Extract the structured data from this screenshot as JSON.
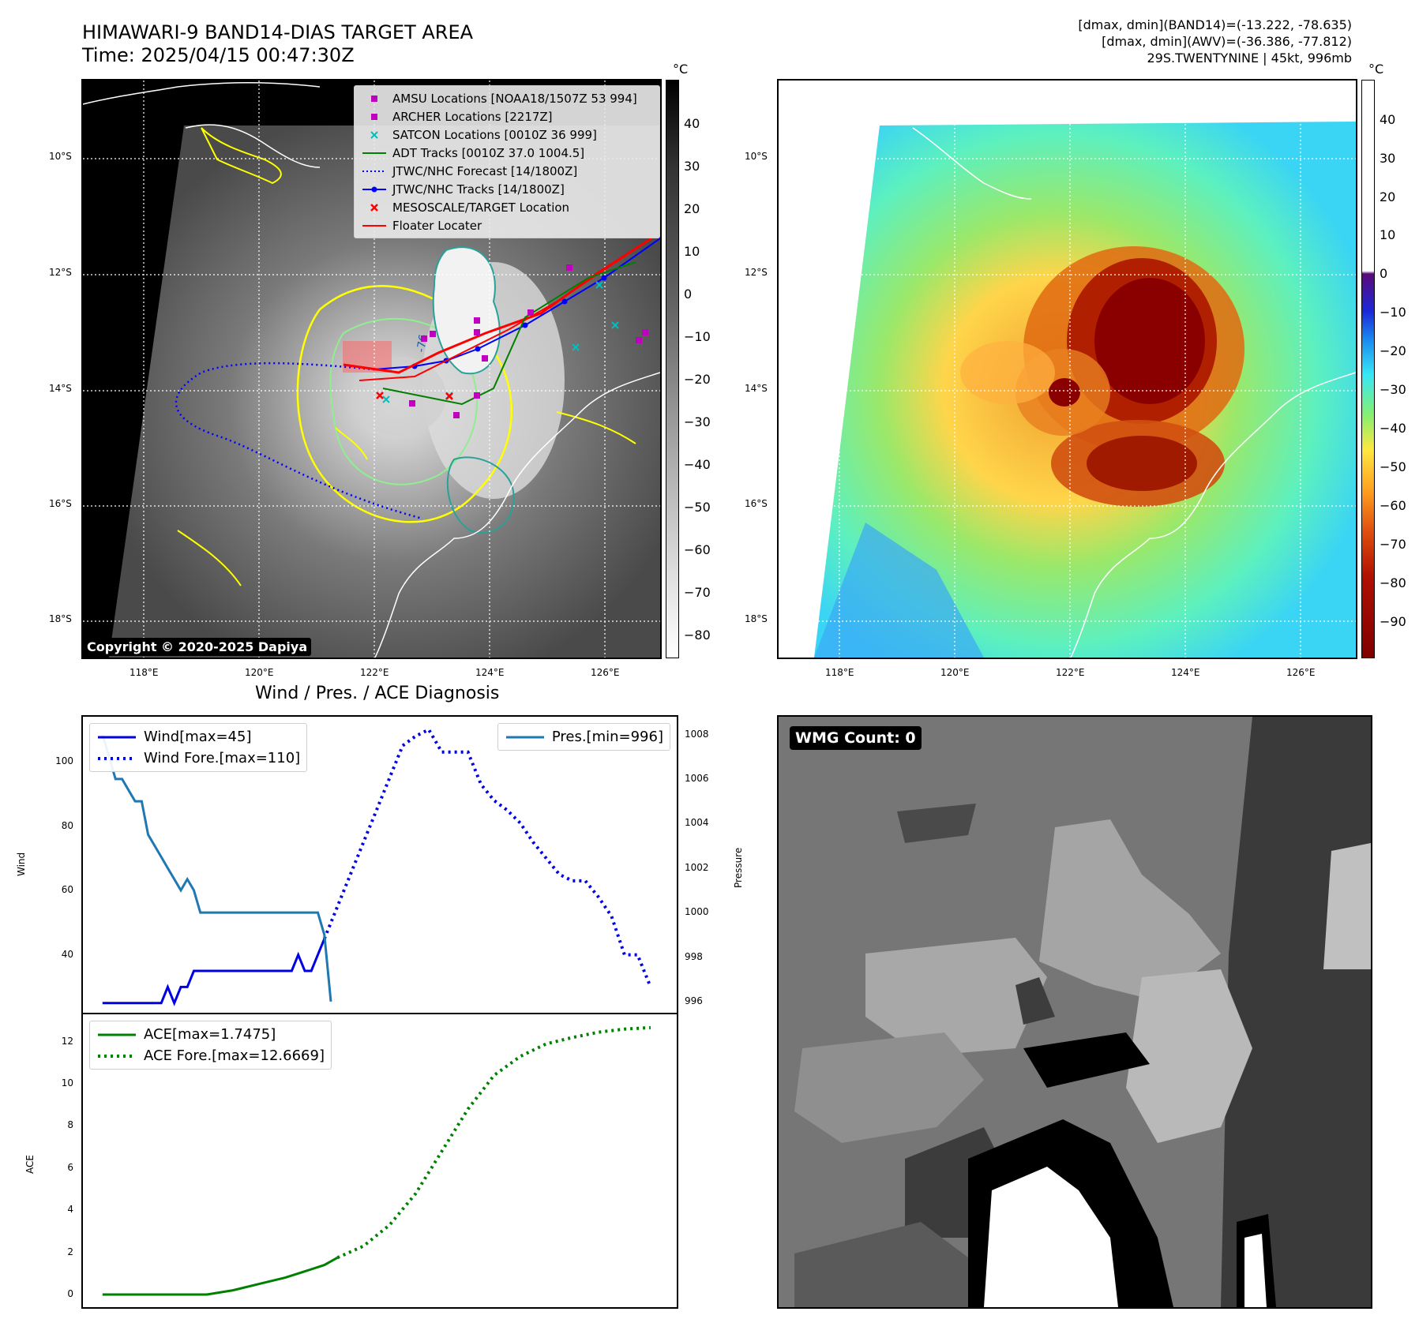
{
  "header": {
    "title_line1": "HIMAWARI-9 BAND14-DIAS TARGET AREA",
    "title_line2": "Time: 2025/04/15 00:47:30Z",
    "right_line1": "[dmax, dmin](BAND14)=(-13.222, -78.635)",
    "right_line2": "[dmax, dmin](AWV)=(-36.386, -77.812)",
    "right_line3": "29S.TWENTYNINE | 45kt, 996mb"
  },
  "map": {
    "lat_labels": [
      "10°S",
      "12°S",
      "14°S",
      "16°S",
      "18°S"
    ],
    "lon_labels": [
      "118°E",
      "120°E",
      "122°E",
      "124°E",
      "126°E"
    ],
    "copyright": "Copyright © 2020-2025 Dapiya",
    "contour_label": "-76",
    "legend": [
      {
        "label": "AMSU Locations [NOAA18/1507Z 53 994]",
        "color": "#bf00bf",
        "symbol": "square"
      },
      {
        "label": "ARCHER Locations [2217Z]",
        "color": "#bf00bf",
        "symbol": "square"
      },
      {
        "label": "SATCON Locations [0010Z 36 999]",
        "color": "#00bfbf",
        "symbol": "x"
      },
      {
        "label": "ADT Tracks [0010Z 37.0 1004.5]",
        "color": "#008000",
        "symbol": "line"
      },
      {
        "label": "JTWC/NHC Forecast [14/1800Z]",
        "color": "#0000ff",
        "symbol": "dotted"
      },
      {
        "label": "JTWC/NHC Tracks [14/1800Z]",
        "color": "#0000ff",
        "symbol": "line-dot"
      },
      {
        "label": "MESOSCALE/TARGET Location",
        "color": "#ff0000",
        "symbol": "x"
      },
      {
        "label": "Floater Locater",
        "color": "#ff0000",
        "symbol": "line"
      }
    ]
  },
  "colorbar_gray": {
    "unit": "°C",
    "ticks": [
      "40",
      "30",
      "20",
      "10",
      "0",
      "−10",
      "−20",
      "−30",
      "−40",
      "−50",
      "−60",
      "−70",
      "−80"
    ]
  },
  "colorbar_color": {
    "unit": "°C",
    "ticks": [
      "40",
      "30",
      "20",
      "10",
      "0",
      "−10",
      "−20",
      "−30",
      "−40",
      "−50",
      "−60",
      "−70",
      "−80",
      "−90"
    ]
  },
  "wmg": {
    "label": "WMG Count: 0"
  },
  "chart_data": [
    {
      "type": "line",
      "title": "Wind / Pres. / ACE Diagnosis",
      "ylabel": "Wind",
      "y2label": "Pressure",
      "ylim": [
        22,
        114
      ],
      "y2lim": [
        995.5,
        1008.8
      ],
      "yticks": [
        40,
        60,
        80,
        100
      ],
      "y2ticks": [
        996,
        998,
        1000,
        1002,
        1004,
        1006,
        1008
      ],
      "series": [
        {
          "name": "Wind[max=45]",
          "color": "#0000e6",
          "style": "solid",
          "axis": "left",
          "x": [
            0,
            1,
            2,
            3,
            4,
            5,
            6,
            7,
            8,
            9,
            10,
            11,
            12,
            13,
            14,
            15,
            16,
            17,
            18,
            19,
            20,
            21,
            22,
            23,
            24,
            25,
            26,
            27,
            28,
            29,
            30,
            31,
            32,
            33,
            34
          ],
          "values": [
            25,
            25,
            25,
            25,
            25,
            25,
            25,
            25,
            25,
            25,
            30,
            25,
            30,
            30,
            35,
            35,
            35,
            35,
            35,
            35,
            35,
            35,
            35,
            35,
            35,
            35,
            35,
            35,
            35,
            35,
            40,
            35,
            35,
            40,
            45
          ]
        },
        {
          "name": "Wind Fore.[max=110]",
          "color": "#0000e6",
          "style": "dotted",
          "axis": "left",
          "x": [
            34,
            36,
            38,
            40,
            42,
            44,
            46,
            48,
            50,
            52,
            54,
            56,
            58,
            60,
            62,
            64,
            66,
            68,
            70,
            72,
            74,
            76,
            78,
            80,
            82,
            84
          ],
          "values": [
            45,
            55,
            65,
            75,
            85,
            95,
            105,
            108,
            110,
            103,
            103,
            103,
            93,
            88,
            85,
            81,
            75,
            70,
            65,
            63,
            63,
            58,
            52,
            40,
            40,
            30
          ]
        },
        {
          "name": "Pres.[min=996]",
          "color": "#1f77b4",
          "style": "solid",
          "axis": "right",
          "x": [
            0,
            1,
            2,
            3,
            4,
            5,
            6,
            7,
            8,
            9,
            10,
            11,
            12,
            13,
            14,
            15,
            16,
            17,
            18,
            19,
            20,
            21,
            22,
            23,
            24,
            25,
            26,
            27,
            28,
            29,
            30,
            31,
            32,
            33,
            34,
            35
          ],
          "values": [
            1008,
            1007,
            1006,
            1006,
            1005.5,
            1005,
            1005,
            1003.5,
            1003,
            1002.5,
            1002,
            1001.5,
            1001,
            1001.5,
            1001,
            1000,
            1000,
            1000,
            1000,
            1000,
            1000,
            1000,
            1000,
            1000,
            1000,
            1000,
            1000,
            1000,
            1000,
            1000,
            1000,
            1000,
            1000,
            1000,
            999,
            996
          ]
        }
      ]
    },
    {
      "type": "line",
      "ylabel": "ACE",
      "ylim": [
        -0.6,
        13.3
      ],
      "yticks": [
        0,
        2,
        4,
        6,
        8,
        10,
        12
      ],
      "series": [
        {
          "name": "ACE[max=1.7475]",
          "color": "#008000",
          "style": "solid",
          "x": [
            0,
            4,
            8,
            12,
            16,
            20,
            24,
            28,
            30,
            32,
            34,
            36
          ],
          "values": [
            0,
            0,
            0,
            0,
            0,
            0.2,
            0.5,
            0.8,
            1.0,
            1.2,
            1.4,
            1.7475
          ]
        },
        {
          "name": "ACE Fore.[max=12.6669]",
          "color": "#008000",
          "style": "dotted",
          "x": [
            36,
            40,
            44,
            48,
            52,
            56,
            60,
            64,
            68,
            72,
            76,
            80,
            84
          ],
          "values": [
            1.7475,
            2.3,
            3.3,
            4.8,
            6.8,
            8.8,
            10.4,
            11.3,
            11.9,
            12.2,
            12.45,
            12.6,
            12.6669
          ]
        }
      ]
    }
  ]
}
